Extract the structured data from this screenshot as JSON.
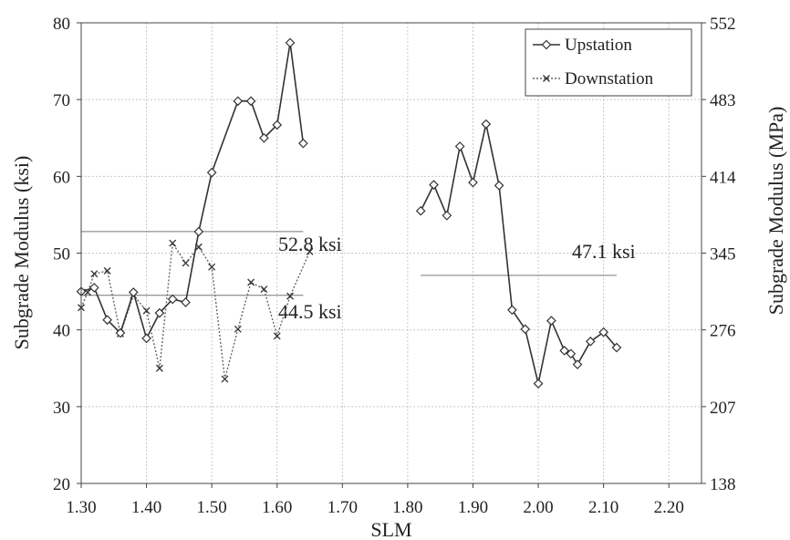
{
  "chart_data": {
    "type": "line",
    "title": "",
    "xlabel": "SLM",
    "ylabel": "Subgrade Modulus (ksi)",
    "ylabel_right": "Subgrade Modulus (MPa)",
    "xlim": [
      1.3,
      2.25
    ],
    "ylim": [
      20,
      80
    ],
    "x_ticks": [
      "1.30",
      "1.40",
      "1.50",
      "1.60",
      "1.70",
      "1.80",
      "1.90",
      "2.00",
      "2.10",
      "2.20"
    ],
    "y_ticks": [
      "20",
      "30",
      "40",
      "50",
      "60",
      "70",
      "80"
    ],
    "y2_ticks": [
      "138",
      "207",
      "276",
      "345",
      "414",
      "483",
      "552"
    ],
    "grid": true,
    "legend_position": "top-right",
    "series": [
      {
        "name": "Upstation",
        "segments": [
          {
            "x": [
              1.3,
              1.32,
              1.34,
              1.36,
              1.38,
              1.4,
              1.42,
              1.44,
              1.46,
              1.48,
              1.5,
              1.54,
              1.56,
              1.58,
              1.6,
              1.62,
              1.64
            ],
            "y": [
              45.0,
              45.5,
              41.3,
              39.6,
              44.9,
              38.9,
              42.2,
              44.0,
              43.6,
              52.8,
              60.5,
              69.8,
              69.8,
              65.0,
              66.7,
              77.4,
              64.3
            ]
          },
          {
            "x": [
              1.82,
              1.84,
              1.86,
              1.88,
              1.9,
              1.92,
              1.94,
              1.96,
              1.98,
              2.0,
              2.02,
              2.04,
              2.05,
              2.06,
              2.08,
              2.1,
              2.12
            ],
            "y": [
              55.5,
              58.9,
              54.9,
              63.9,
              59.2,
              66.8,
              58.8,
              42.6,
              40.1,
              33.0,
              41.2,
              37.3,
              36.9,
              35.5,
              38.5,
              39.7,
              37.7
            ]
          }
        ]
      },
      {
        "name": "Downstation",
        "segments": [
          {
            "x": [
              1.3,
              1.31,
              1.32,
              1.34,
              1.36,
              1.38,
              1.4,
              1.42,
              1.44,
              1.46,
              1.48,
              1.5,
              1.52,
              1.54,
              1.56,
              1.58,
              1.6,
              1.62,
              1.65
            ],
            "y": [
              42.9,
              44.9,
              47.3,
              47.7,
              39.5,
              44.5,
              42.5,
              35.0,
              51.3,
              48.7,
              50.8,
              48.2,
              33.6,
              40.1,
              46.2,
              45.3,
              39.2,
              44.4,
              50.2
            ]
          }
        ]
      }
    ],
    "mean_lines": [
      {
        "value": 52.8,
        "x_range": [
          1.3,
          1.64
        ],
        "label": "52.8 ksi"
      },
      {
        "value": 44.5,
        "x_range": [
          1.3,
          1.64
        ],
        "label": "44.5 ksi"
      },
      {
        "value": 47.1,
        "x_range": [
          1.82,
          2.12
        ],
        "label": "47.1 ksi"
      }
    ]
  }
}
